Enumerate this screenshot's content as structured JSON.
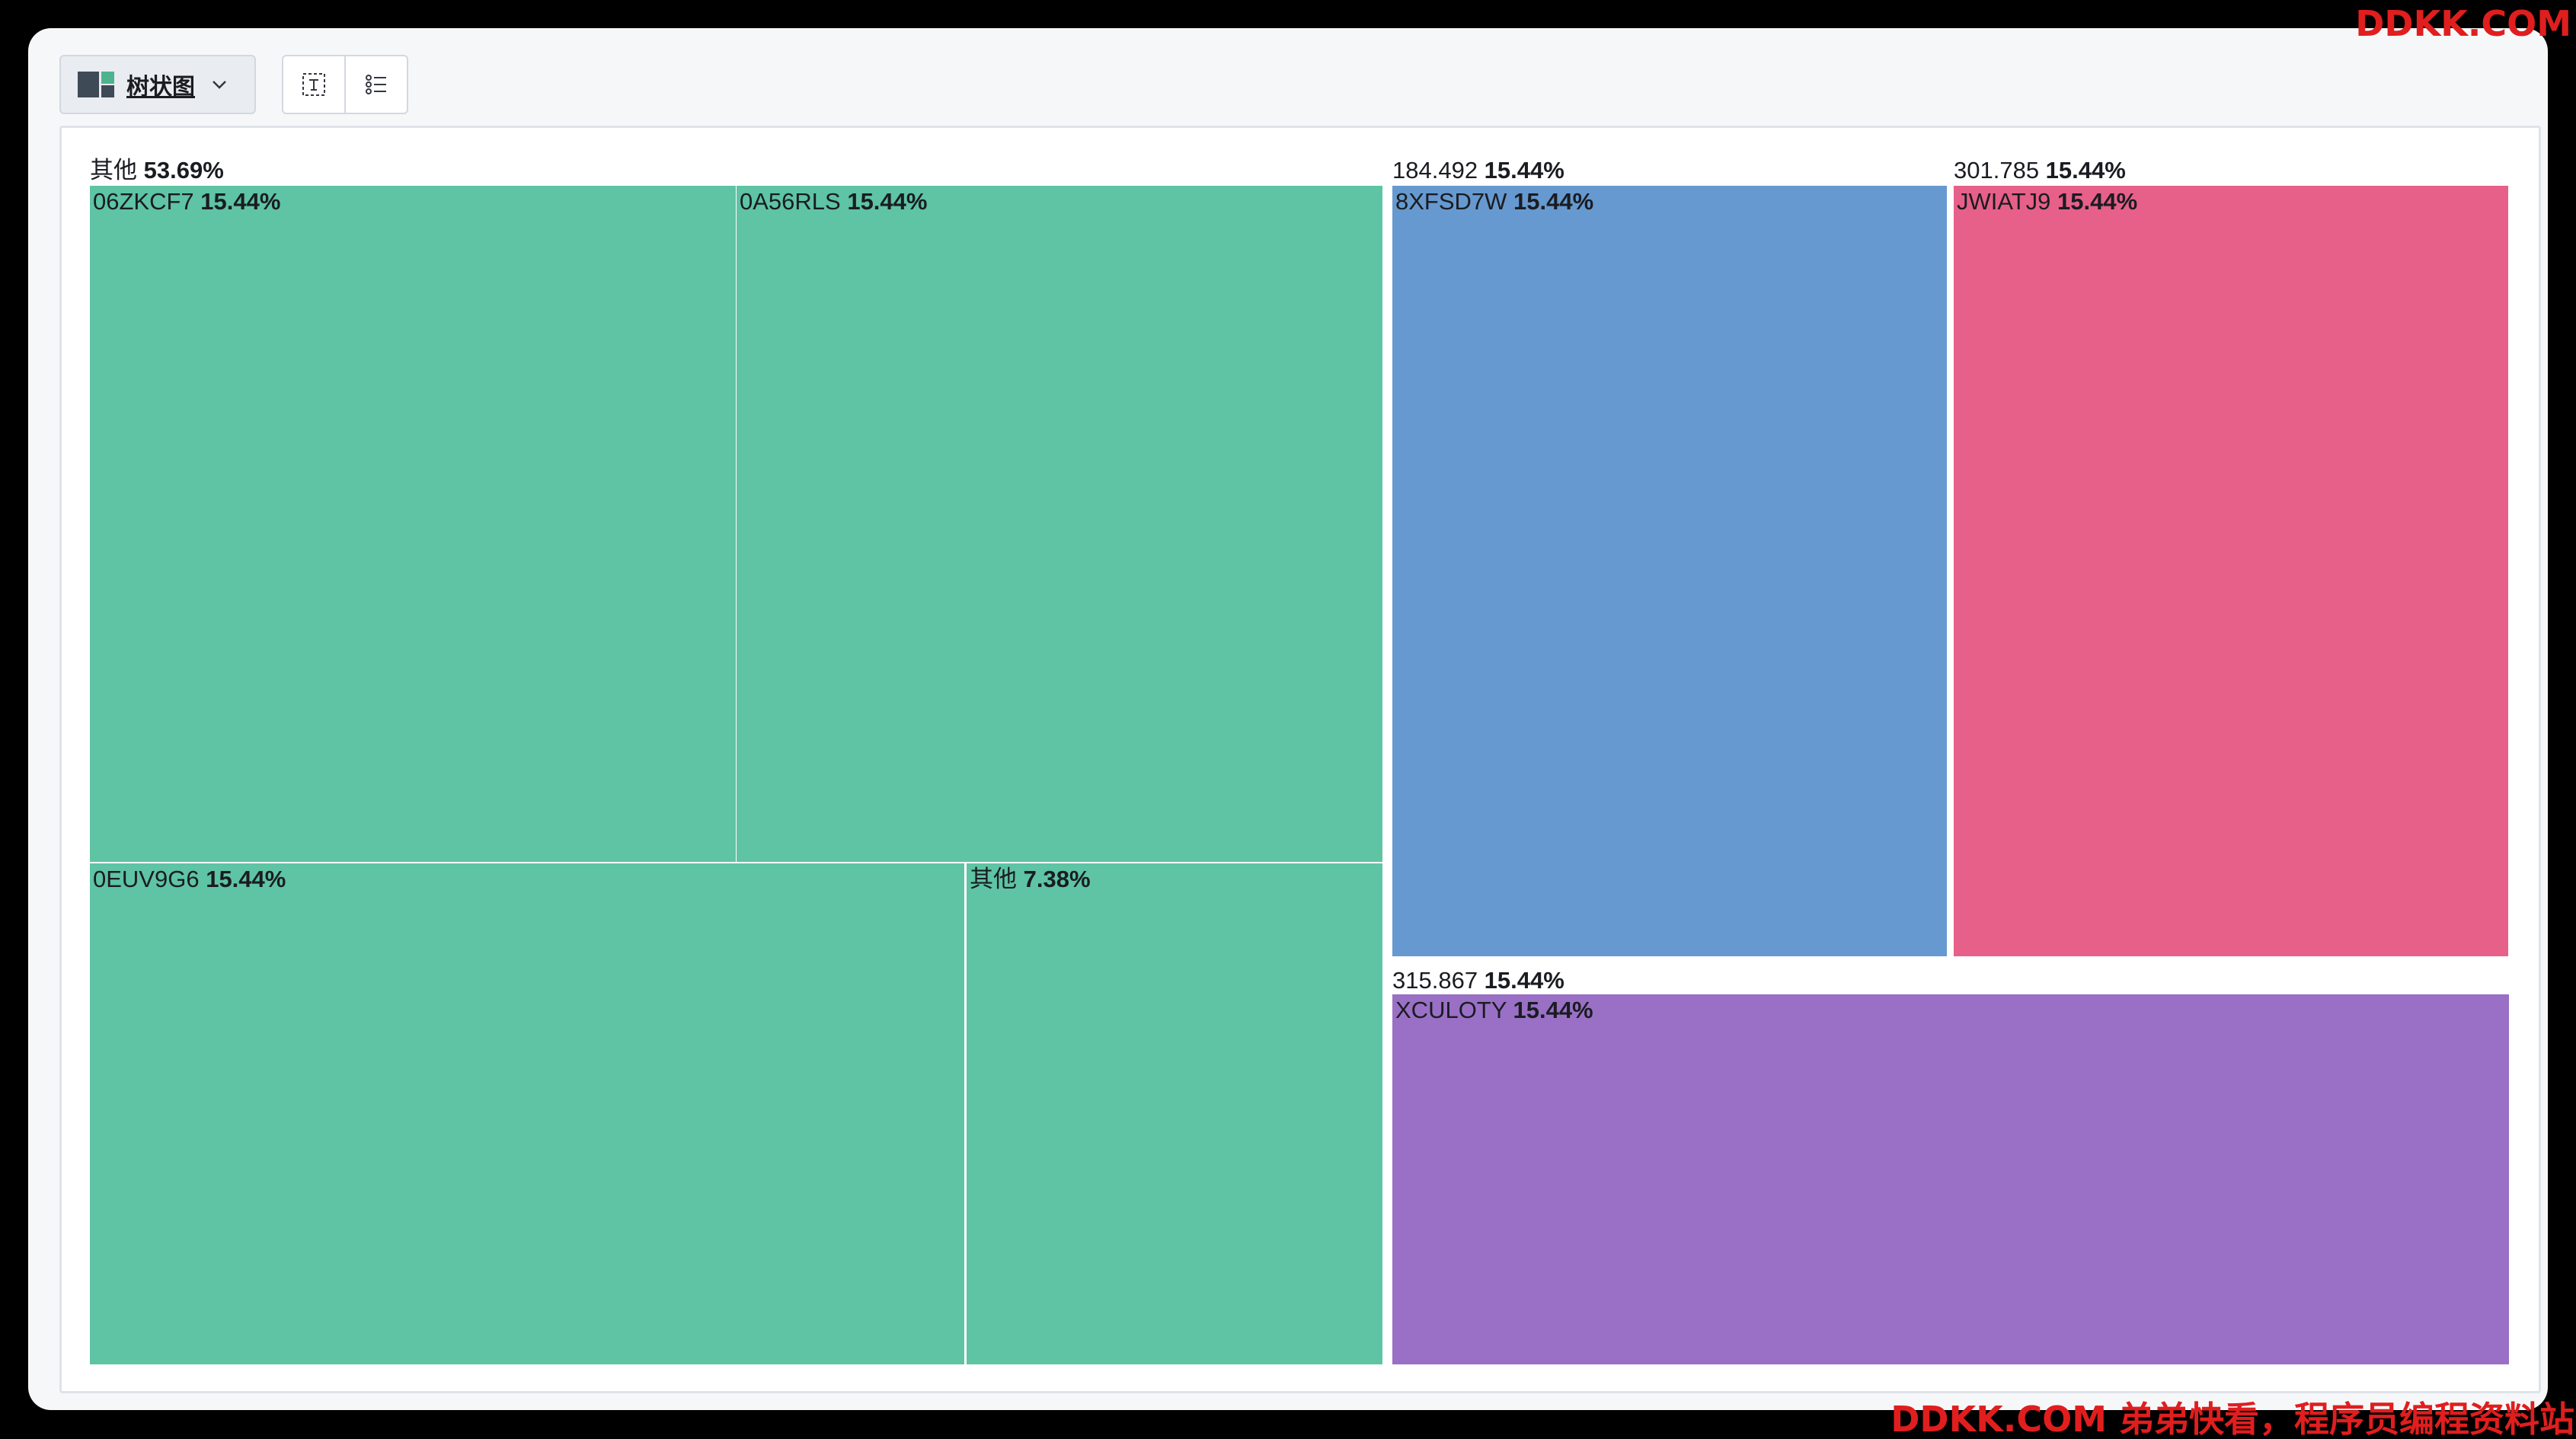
{
  "toolbar": {
    "chart_type_label": "树状图",
    "icons": [
      "treemap-icon",
      "chevron-down-icon",
      "fit-icon",
      "legend-list-icon"
    ]
  },
  "watermarks": {
    "top": "DDKK.COM",
    "bottom": "DDKK.COM 弟弟快看，程序员编程资料站"
  },
  "colors": {
    "green": "#5ec4a3",
    "blue": "#6699cf",
    "pink": "#e76089",
    "purple": "#9a70c6"
  },
  "chart_data": {
    "type": "treemap",
    "groups": [
      {
        "name": "其他",
        "percent": "53.69%",
        "color": "#5ec4a3",
        "children": [
          {
            "name": "06ZKCF7",
            "percent": "15.44%"
          },
          {
            "name": "0A56RLS",
            "percent": "15.44%"
          },
          {
            "name": "0EUV9G6",
            "percent": "15.44%"
          },
          {
            "name": "其他",
            "percent": "7.38%"
          }
        ]
      },
      {
        "name": "184.492",
        "percent": "15.44%",
        "color": "#6699cf",
        "children": [
          {
            "name": "8XFSD7W",
            "percent": "15.44%"
          }
        ]
      },
      {
        "name": "301.785",
        "percent": "15.44%",
        "color": "#e76089",
        "children": [
          {
            "name": "JWIATJ9",
            "percent": "15.44%"
          }
        ]
      },
      {
        "name": "315.867",
        "percent": "15.44%",
        "color": "#9a70c6",
        "children": [
          {
            "name": "XCULOTY",
            "percent": "15.44%"
          }
        ]
      }
    ]
  }
}
